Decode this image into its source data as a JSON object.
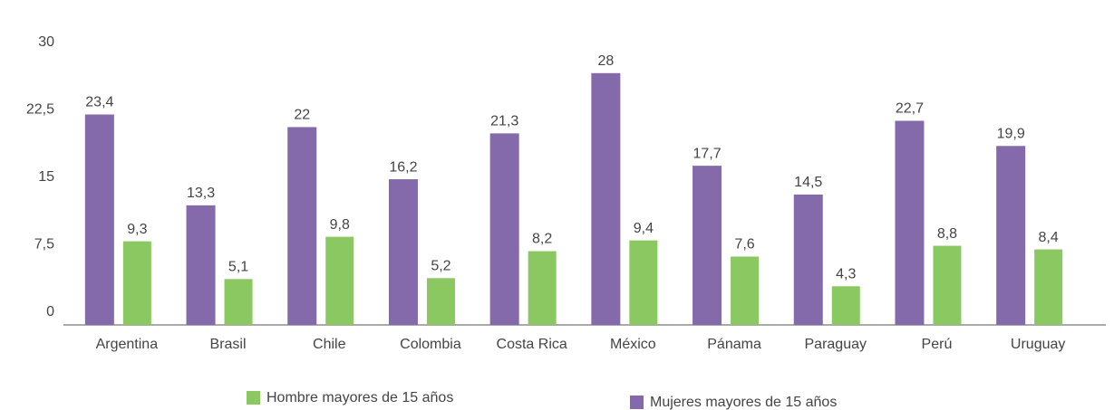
{
  "chart_data": {
    "type": "bar",
    "categories": [
      "Argentina",
      "Brasil",
      "Chile",
      "Colombia",
      "Costa Rica",
      "México",
      "Pánama",
      "Paraguay",
      "Perú",
      "Uruguay"
    ],
    "series": [
      {
        "name": "Mujeres mayores de 15 años",
        "color": "#8469ab",
        "values": [
          23.4,
          13.3,
          22,
          16.2,
          21.3,
          28,
          17.7,
          14.5,
          22.7,
          19.9
        ],
        "value_labels": [
          "23,4",
          "13,3",
          "22",
          "16,2",
          "21,3",
          "28",
          "17,7",
          "14,5",
          "22,7",
          "19,9"
        ]
      },
      {
        "name": "Hombre mayores de 15 años",
        "color": "#8cc862",
        "values": [
          9.3,
          5.1,
          9.8,
          5.2,
          8.2,
          9.4,
          7.6,
          4.3,
          8.8,
          8.4
        ],
        "value_labels": [
          "9,3",
          "5,1",
          "9,8",
          "5,2",
          "8,2",
          "9,4",
          "7,6",
          "4,3",
          "8,8",
          "8,4"
        ]
      }
    ],
    "ylim": [
      0,
      31
    ],
    "yticks": [
      0,
      {
        "value": 7.5,
        "label": "7,5"
      },
      15,
      {
        "value": 22.5,
        "label": "22,5"
      },
      30
    ],
    "grid": false
  }
}
